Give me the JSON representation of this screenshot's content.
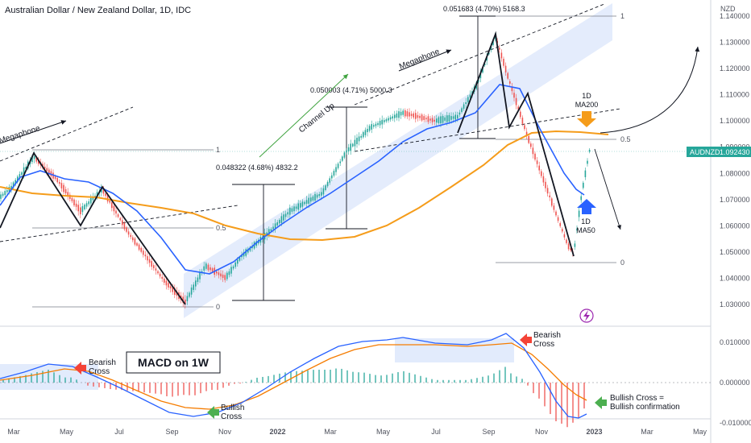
{
  "chart_data": {
    "type": "line",
    "title": "Australian Dollar / New Zealand Dollar, 1D, IDC",
    "currency": "NZD",
    "ticker": "AUDNZD",
    "last_price": "1.092430",
    "price_axis": {
      "range": [
        1.025,
        1.152
      ],
      "ticks": [
        "1.140000",
        "1.130000",
        "1.120000",
        "1.110000",
        "1.100000",
        "1.090000",
        "1.080000",
        "1.070000",
        "1.060000",
        "1.050000",
        "1.040000",
        "1.030000"
      ]
    },
    "macd_axis": {
      "range": [
        -0.0115,
        0.0135
      ],
      "ticks": [
        "0.010000",
        "0.000000",
        "-0.010000"
      ]
    },
    "time_axis": [
      "Mar",
      "May",
      "Jul",
      "Sep",
      "Nov",
      "2022",
      "Mar",
      "May",
      "Jul",
      "Sep",
      "Nov",
      "2023",
      "Mar",
      "May"
    ],
    "series": [
      {
        "name": "1D MA200",
        "color": "#f59c1a"
      },
      {
        "name": "1D MA50",
        "color": "#2962ff"
      }
    ],
    "fib_levels": [
      {
        "label": "1"
      },
      {
        "label": "0.5"
      },
      {
        "label": "0"
      },
      {
        "label": "1"
      },
      {
        "label": "0.5"
      },
      {
        "label": "0"
      }
    ],
    "measurements": [
      {
        "text": "0.048322 (4.68%) 4832.2"
      },
      {
        "text": "0.050003 (4.71%) 5000.3"
      },
      {
        "text": "0.051683 (4.70%) 5168.3"
      }
    ],
    "annotations": {
      "megaphone_1": "Megaphone",
      "megaphone_2": "Megaphone",
      "channel_up": "Channel Up",
      "ma200_label": [
        "1D",
        "MA200"
      ],
      "ma50_label": [
        "1D",
        "MA50"
      ],
      "macd_title": "MACD on 1W",
      "bearish_cross_1": [
        "Bearish",
        "Cross"
      ],
      "bearish_cross_2": [
        "Bearish",
        "Cross"
      ],
      "bullish_cross": [
        "Bullish",
        "Cross"
      ],
      "bullish_confirmation": [
        "Bullish Cross =",
        "Bullish confirmation"
      ]
    },
    "colors": {
      "ma200": "#f59c1a",
      "ma50": "#2962ff",
      "macd": "#2962ff",
      "signal": "#f57c00",
      "up_candle": "#26a69a",
      "down_candle": "#ef5350",
      "channel_fill": "#dbe6fb",
      "green_arrow": "#4caf50",
      "red_arrow": "#f44336",
      "ticker_badge": "#26a69a"
    }
  }
}
